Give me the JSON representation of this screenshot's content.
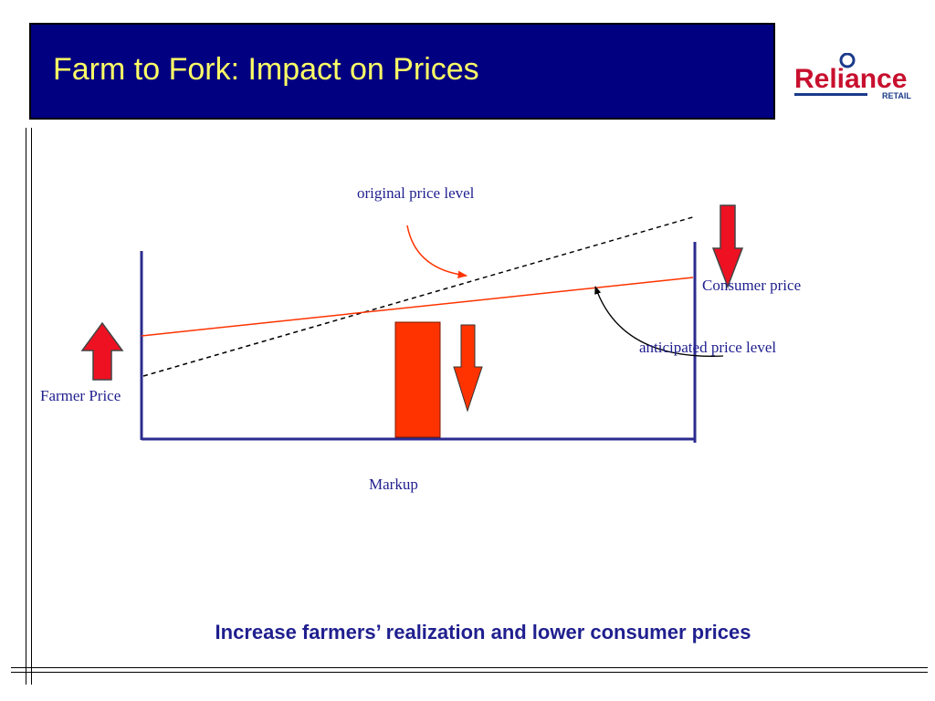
{
  "slide": {
    "title": "Farm to Fork: Impact on Prices",
    "bottom_text": "Increase farmers’ realization and lower consumer prices"
  },
  "logo": {
    "brand": "Reliance",
    "sub": "RETAIL"
  },
  "diagram": {
    "labels": {
      "original_price_level": "original price level",
      "consumer_price": "Consumer price",
      "anticipated_price_level": "anticipated price level",
      "farmer_price": "Farmer Price",
      "markup": "Markup"
    }
  },
  "colors": {
    "title_bg": "#000080",
    "title_text": "#ffff66",
    "navy": "#2b2b8f",
    "red": "#ff3300",
    "arrow_red": "#ee1122",
    "label_text": "#1f1f8f"
  }
}
